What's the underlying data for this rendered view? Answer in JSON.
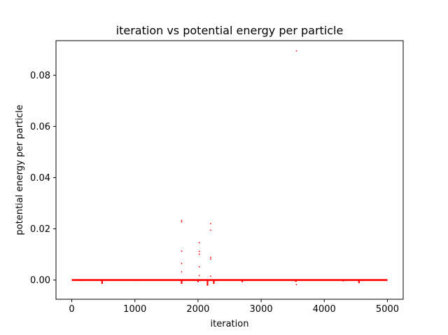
{
  "chart_data": {
    "type": "scatter",
    "title": "iteration vs potential energy per particle",
    "xlabel": "iteration",
    "ylabel": "potential energy per particle",
    "xlim": [
      -250,
      5250
    ],
    "ylim": [
      -0.0075,
      0.0935
    ],
    "xticks": [
      0,
      1000,
      2000,
      3000,
      4000,
      5000
    ],
    "xtick_labels": [
      "0",
      "1000",
      "2000",
      "3000",
      "4000",
      "5000"
    ],
    "yticks": [
      0.0,
      0.02,
      0.04,
      0.06,
      0.08
    ],
    "ytick_labels": [
      "0.00",
      "0.02",
      "0.04",
      "0.06",
      "0.08"
    ],
    "grid": false,
    "marker_color": "#ff0000",
    "baseline": {
      "x_start": 0,
      "x_end": 5000,
      "y": 0.0,
      "note_dips": [
        [
          150,
          -0.0003
        ],
        [
          480,
          -0.0015
        ],
        [
          1000,
          -0.0003
        ],
        [
          1740,
          -0.0015
        ],
        [
          2000,
          -0.0008
        ],
        [
          2150,
          -0.0022
        ],
        [
          2250,
          -0.0015
        ],
        [
          2700,
          -0.0008
        ],
        [
          3550,
          -0.0007
        ],
        [
          4300,
          -0.0005
        ],
        [
          4550,
          -0.0012
        ]
      ]
    },
    "series": [
      {
        "values": [
          [
            1740,
            0.0233
          ],
          [
            1740,
            0.0227
          ],
          [
            1740,
            0.0113
          ],
          [
            1740,
            0.0065
          ],
          [
            1740,
            0.0032
          ],
          [
            2020,
            0.0146
          ],
          [
            2020,
            0.0112
          ],
          [
            2020,
            0.0101
          ],
          [
            2020,
            0.0052
          ],
          [
            2020,
            0.0018
          ],
          [
            2200,
            0.022
          ],
          [
            2200,
            0.0195
          ],
          [
            2200,
            0.0088
          ],
          [
            2200,
            0.0082
          ],
          [
            2200,
            0.0015
          ],
          [
            3560,
            0.0895
          ],
          [
            3560,
            -0.0018
          ]
        ]
      }
    ]
  }
}
